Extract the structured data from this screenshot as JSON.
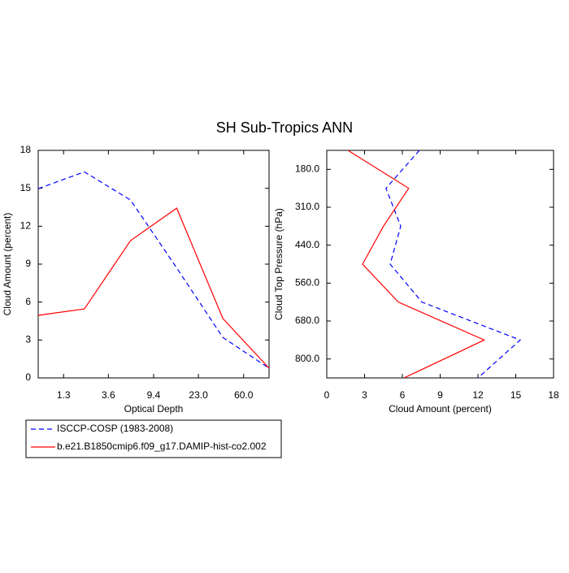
{
  "title": "SH Sub-Tropics ANN",
  "chart_data": [
    {
      "type": "line",
      "orientation": "vertical",
      "x": [
        0,
        1,
        2,
        3,
        4,
        5
      ],
      "xlim": [
        0,
        5
      ],
      "xticks": [
        {
          "value": 0.55,
          "label": "1.3"
        },
        {
          "value": 1.52,
          "label": "3.6"
        },
        {
          "value": 2.5,
          "label": "9.4"
        },
        {
          "value": 3.47,
          "label": "23.0"
        },
        {
          "value": 4.45,
          "label": "60.0"
        }
      ],
      "ylim": [
        0,
        18
      ],
      "yticks": [
        0,
        3,
        6,
        9,
        12,
        15,
        18
      ],
      "xlabel": "Optical Depth",
      "ylabel": "Cloud Amount (percent)",
      "series": [
        {
          "name": "ISCCP-COSP (1983-2008)",
          "color": "#0000ff",
          "dash": true,
          "values": [
            14.97,
            16.3,
            14.07,
            8.7,
            3.2,
            0.77
          ]
        },
        {
          "name": "b.e21.B1850cmip6.f09_g17.DAMIP-hist-co2.002",
          "color": "#ff0000",
          "dash": false,
          "values": [
            4.95,
            5.46,
            10.86,
            13.43,
            4.7,
            0.77
          ]
        }
      ]
    },
    {
      "type": "line",
      "orientation": "horizontal",
      "y": [
        0,
        1,
        2,
        3,
        4,
        5,
        6
      ],
      "ylim": [
        6,
        0
      ],
      "yticks": [
        {
          "value": 0.5,
          "label": "180.0"
        },
        {
          "value": 1.5,
          "label": "310.0"
        },
        {
          "value": 2.5,
          "label": "440.0"
        },
        {
          "value": 3.5,
          "label": "560.0"
        },
        {
          "value": 4.5,
          "label": "680.0"
        },
        {
          "value": 5.5,
          "label": "800.0"
        }
      ],
      "xlim": [
        0,
        18
      ],
      "xticks": [
        0,
        3,
        6,
        9,
        12,
        15,
        18
      ],
      "xlabel": "Cloud Amount (percent)",
      "ylabel": "Cloud Top Pressure (hPa)",
      "series": [
        {
          "color": "#0000ff",
          "dash": true,
          "values": [
            7.35,
            4.7,
            5.87,
            5.03,
            7.55,
            15.35,
            12.0
          ]
        },
        {
          "color": "#ff0000",
          "dash": false,
          "values": [
            1.68,
            6.5,
            4.5,
            2.84,
            5.68,
            12.5,
            6.13
          ]
        }
      ]
    }
  ]
}
